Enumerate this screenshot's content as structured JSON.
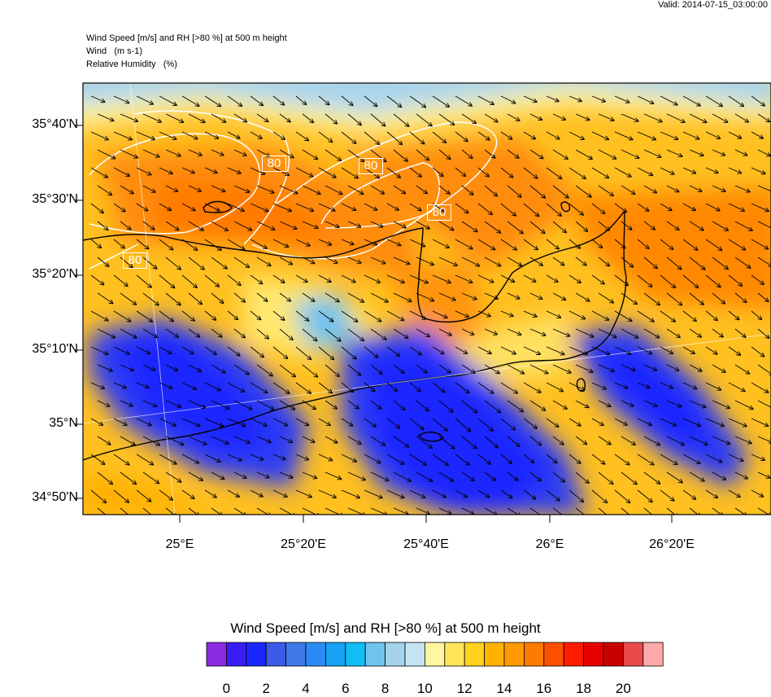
{
  "header": {
    "valid_label": "Valid: 2014-07-15_03:00:00",
    "line1": "Wind Speed [m/s] and RH [>80 %] at 500 m height",
    "line2": "Wind   (m s-1)",
    "line3": "Relative Humidity   (%)"
  },
  "map": {
    "lat_ticks": [
      "35°40'N",
      "35°30'N",
      "35°20'N",
      "35°10'N",
      "35°N",
      "34°50'N"
    ],
    "lon_ticks": [
      "25°E",
      "25°20'E",
      "25°40'E",
      "26°E",
      "26°20'E"
    ],
    "rh_contour_labels": [
      "80",
      "80",
      "80",
      "80"
    ],
    "colors": {
      "high_wind": "#ff8c00",
      "mid_wind": "#ffd000",
      "low_wind": "#1a28ff",
      "rh_contour": "#ffffff",
      "coastline": "#000000"
    }
  },
  "colorbar": {
    "title": "Wind Speed [m/s] and RH [>80 %] at 500 m height",
    "colors": [
      "#8a2be2",
      "#3b1cf5",
      "#1a28ff",
      "#3c5ae6",
      "#3f7ae8",
      "#2b8af5",
      "#16a3f5",
      "#10bdf5",
      "#6fc3ee",
      "#a5d3ec",
      "#c4e4f2",
      "#fff6a0",
      "#ffe45a",
      "#ffd21f",
      "#ffb300",
      "#ff9a00",
      "#ff7a00",
      "#ff4f00",
      "#ff1c00",
      "#e60000",
      "#c80000",
      "#e84a4a",
      "#ffaaaa"
    ],
    "labels": [
      "0",
      "2",
      "4",
      "6",
      "8",
      "10",
      "12",
      "14",
      "16",
      "18",
      "20"
    ]
  }
}
